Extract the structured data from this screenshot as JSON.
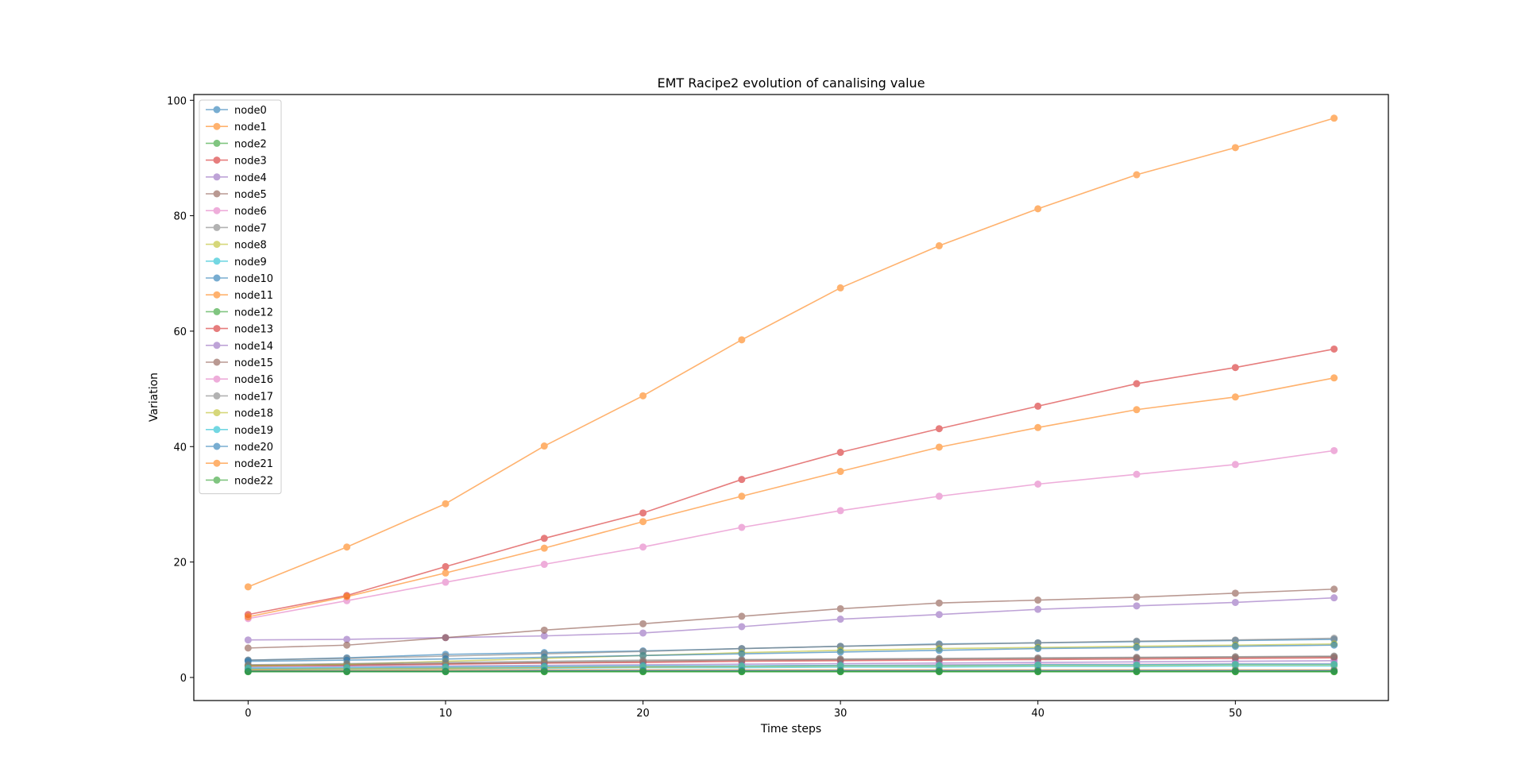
{
  "chart_data": {
    "type": "line",
    "title": "EMT Racipe2 evolution of canalising value",
    "xlabel": "Time steps",
    "ylabel": "Variation",
    "xlim": [
      -2.75,
      57.75
    ],
    "ylim": [
      -4,
      101
    ],
    "xticks": [
      0,
      10,
      20,
      30,
      40,
      50
    ],
    "yticks": [
      0,
      20,
      40,
      60,
      80,
      100
    ],
    "grid": false,
    "legend_position": "upper-left",
    "x": [
      0,
      5,
      10,
      15,
      20,
      25,
      30,
      35,
      40,
      45,
      50,
      55
    ],
    "colors": [
      "#1f77b4",
      "#ff7f0e",
      "#2ca02c",
      "#d62728",
      "#9467bd",
      "#8c564b",
      "#e377c2",
      "#7f7f7f",
      "#bcbd22",
      "#17becf"
    ],
    "series": [
      {
        "name": "node0",
        "values": [
          3.0,
          3.4,
          4.0,
          4.3,
          4.6,
          5.0,
          5.4,
          5.8,
          6.0,
          6.2,
          6.4,
          6.6
        ]
      },
      {
        "name": "node1",
        "values": [
          15.7,
          22.6,
          30.1,
          40.1,
          48.8,
          58.5,
          67.5,
          74.8,
          81.2,
          87.1,
          91.8,
          96.9
        ]
      },
      {
        "name": "node2",
        "values": [
          1.1,
          1.1,
          1.1,
          1.1,
          1.1,
          1.1,
          1.1,
          1.1,
          1.1,
          1.1,
          1.1,
          1.1
        ]
      },
      {
        "name": "node3",
        "values": [
          2.0,
          2.1,
          2.3,
          2.5,
          2.6,
          2.8,
          2.9,
          3.0,
          3.1,
          3.2,
          3.3,
          3.4
        ]
      },
      {
        "name": "node4",
        "values": [
          1.8,
          1.9,
          2.0,
          2.1,
          2.2,
          2.3,
          2.4,
          2.5,
          2.6,
          2.7,
          2.8,
          2.9
        ]
      },
      {
        "name": "node5",
        "values": [
          2.1,
          2.2,
          2.4,
          2.6,
          2.8,
          3.0,
          3.1,
          3.2,
          3.3,
          3.4,
          3.5,
          3.6
        ]
      },
      {
        "name": "node6",
        "values": [
          10.2,
          13.3,
          16.5,
          19.6,
          22.6,
          26.0,
          28.9,
          31.4,
          33.5,
          35.2,
          36.9,
          39.3
        ]
      },
      {
        "name": "node7",
        "values": [
          3.0,
          3.3,
          3.7,
          4.1,
          4.5,
          5.0,
          5.4,
          5.7,
          6.0,
          6.3,
          6.5,
          6.8
        ]
      },
      {
        "name": "node8",
        "values": [
          2.0,
          2.3,
          2.8,
          3.3,
          3.8,
          4.3,
          4.7,
          5.0,
          5.2,
          5.4,
          5.6,
          5.8
        ]
      },
      {
        "name": "node9",
        "values": [
          1.3,
          1.4,
          1.5,
          1.6,
          1.7,
          1.7,
          1.8,
          1.8,
          1.9,
          1.9,
          2.0,
          2.0
        ]
      },
      {
        "name": "node10",
        "values": [
          2.8,
          3.0,
          3.2,
          3.5,
          3.8,
          4.1,
          4.4,
          4.7,
          5.0,
          5.2,
          5.4,
          5.6
        ]
      },
      {
        "name": "node11",
        "values": [
          1.2,
          1.2,
          1.3,
          1.3,
          1.3,
          1.3,
          1.3,
          1.3,
          1.3,
          1.3,
          1.3,
          1.3
        ]
      },
      {
        "name": "node12",
        "values": [
          1.0,
          1.0,
          1.0,
          1.0,
          1.0,
          1.0,
          1.0,
          1.0,
          1.0,
          1.0,
          1.0,
          1.0
        ]
      },
      {
        "name": "node13",
        "values": [
          10.9,
          14.2,
          19.2,
          24.1,
          28.5,
          34.3,
          39.0,
          43.1,
          47.0,
          50.9,
          53.7,
          56.9
        ]
      },
      {
        "name": "node14",
        "values": [
          6.5,
          6.6,
          6.9,
          7.2,
          7.7,
          8.8,
          10.1,
          10.9,
          11.8,
          12.4,
          13.0,
          13.8
        ]
      },
      {
        "name": "node15",
        "values": [
          5.1,
          5.6,
          6.9,
          8.2,
          9.3,
          10.6,
          11.9,
          12.9,
          13.4,
          13.9,
          14.6,
          15.3
        ]
      },
      {
        "name": "node16",
        "values": [
          1.5,
          1.6,
          1.7,
          1.8,
          1.9,
          2.0,
          2.1,
          2.2,
          2.3,
          2.3,
          2.4,
          2.4
        ]
      },
      {
        "name": "node17",
        "values": [
          2.2,
          2.4,
          2.6,
          2.8,
          3.0,
          3.1,
          3.2,
          3.3,
          3.4,
          3.5,
          3.6,
          3.7
        ]
      },
      {
        "name": "node18",
        "values": [
          1.4,
          1.5,
          1.6,
          1.7,
          1.8,
          1.9,
          2.0,
          2.0,
          2.1,
          2.1,
          2.2,
          2.2
        ]
      },
      {
        "name": "node19",
        "values": [
          1.6,
          1.7,
          1.8,
          1.9,
          2.0,
          2.0,
          2.1,
          2.1,
          2.2,
          2.2,
          2.3,
          2.3
        ]
      },
      {
        "name": "node20",
        "values": [
          1.1,
          1.1,
          1.1,
          1.2,
          1.2,
          1.2,
          1.2,
          1.2,
          1.2,
          1.2,
          1.2,
          1.2
        ]
      },
      {
        "name": "node21",
        "values": [
          10.5,
          14.0,
          18.1,
          22.4,
          27.0,
          31.4,
          35.7,
          39.9,
          43.3,
          46.4,
          48.6,
          51.9
        ]
      },
      {
        "name": "node22",
        "values": [
          1.0,
          1.0,
          1.0,
          1.0,
          1.0,
          1.0,
          1.0,
          1.0,
          1.0,
          1.0,
          1.0,
          1.0
        ]
      }
    ]
  }
}
